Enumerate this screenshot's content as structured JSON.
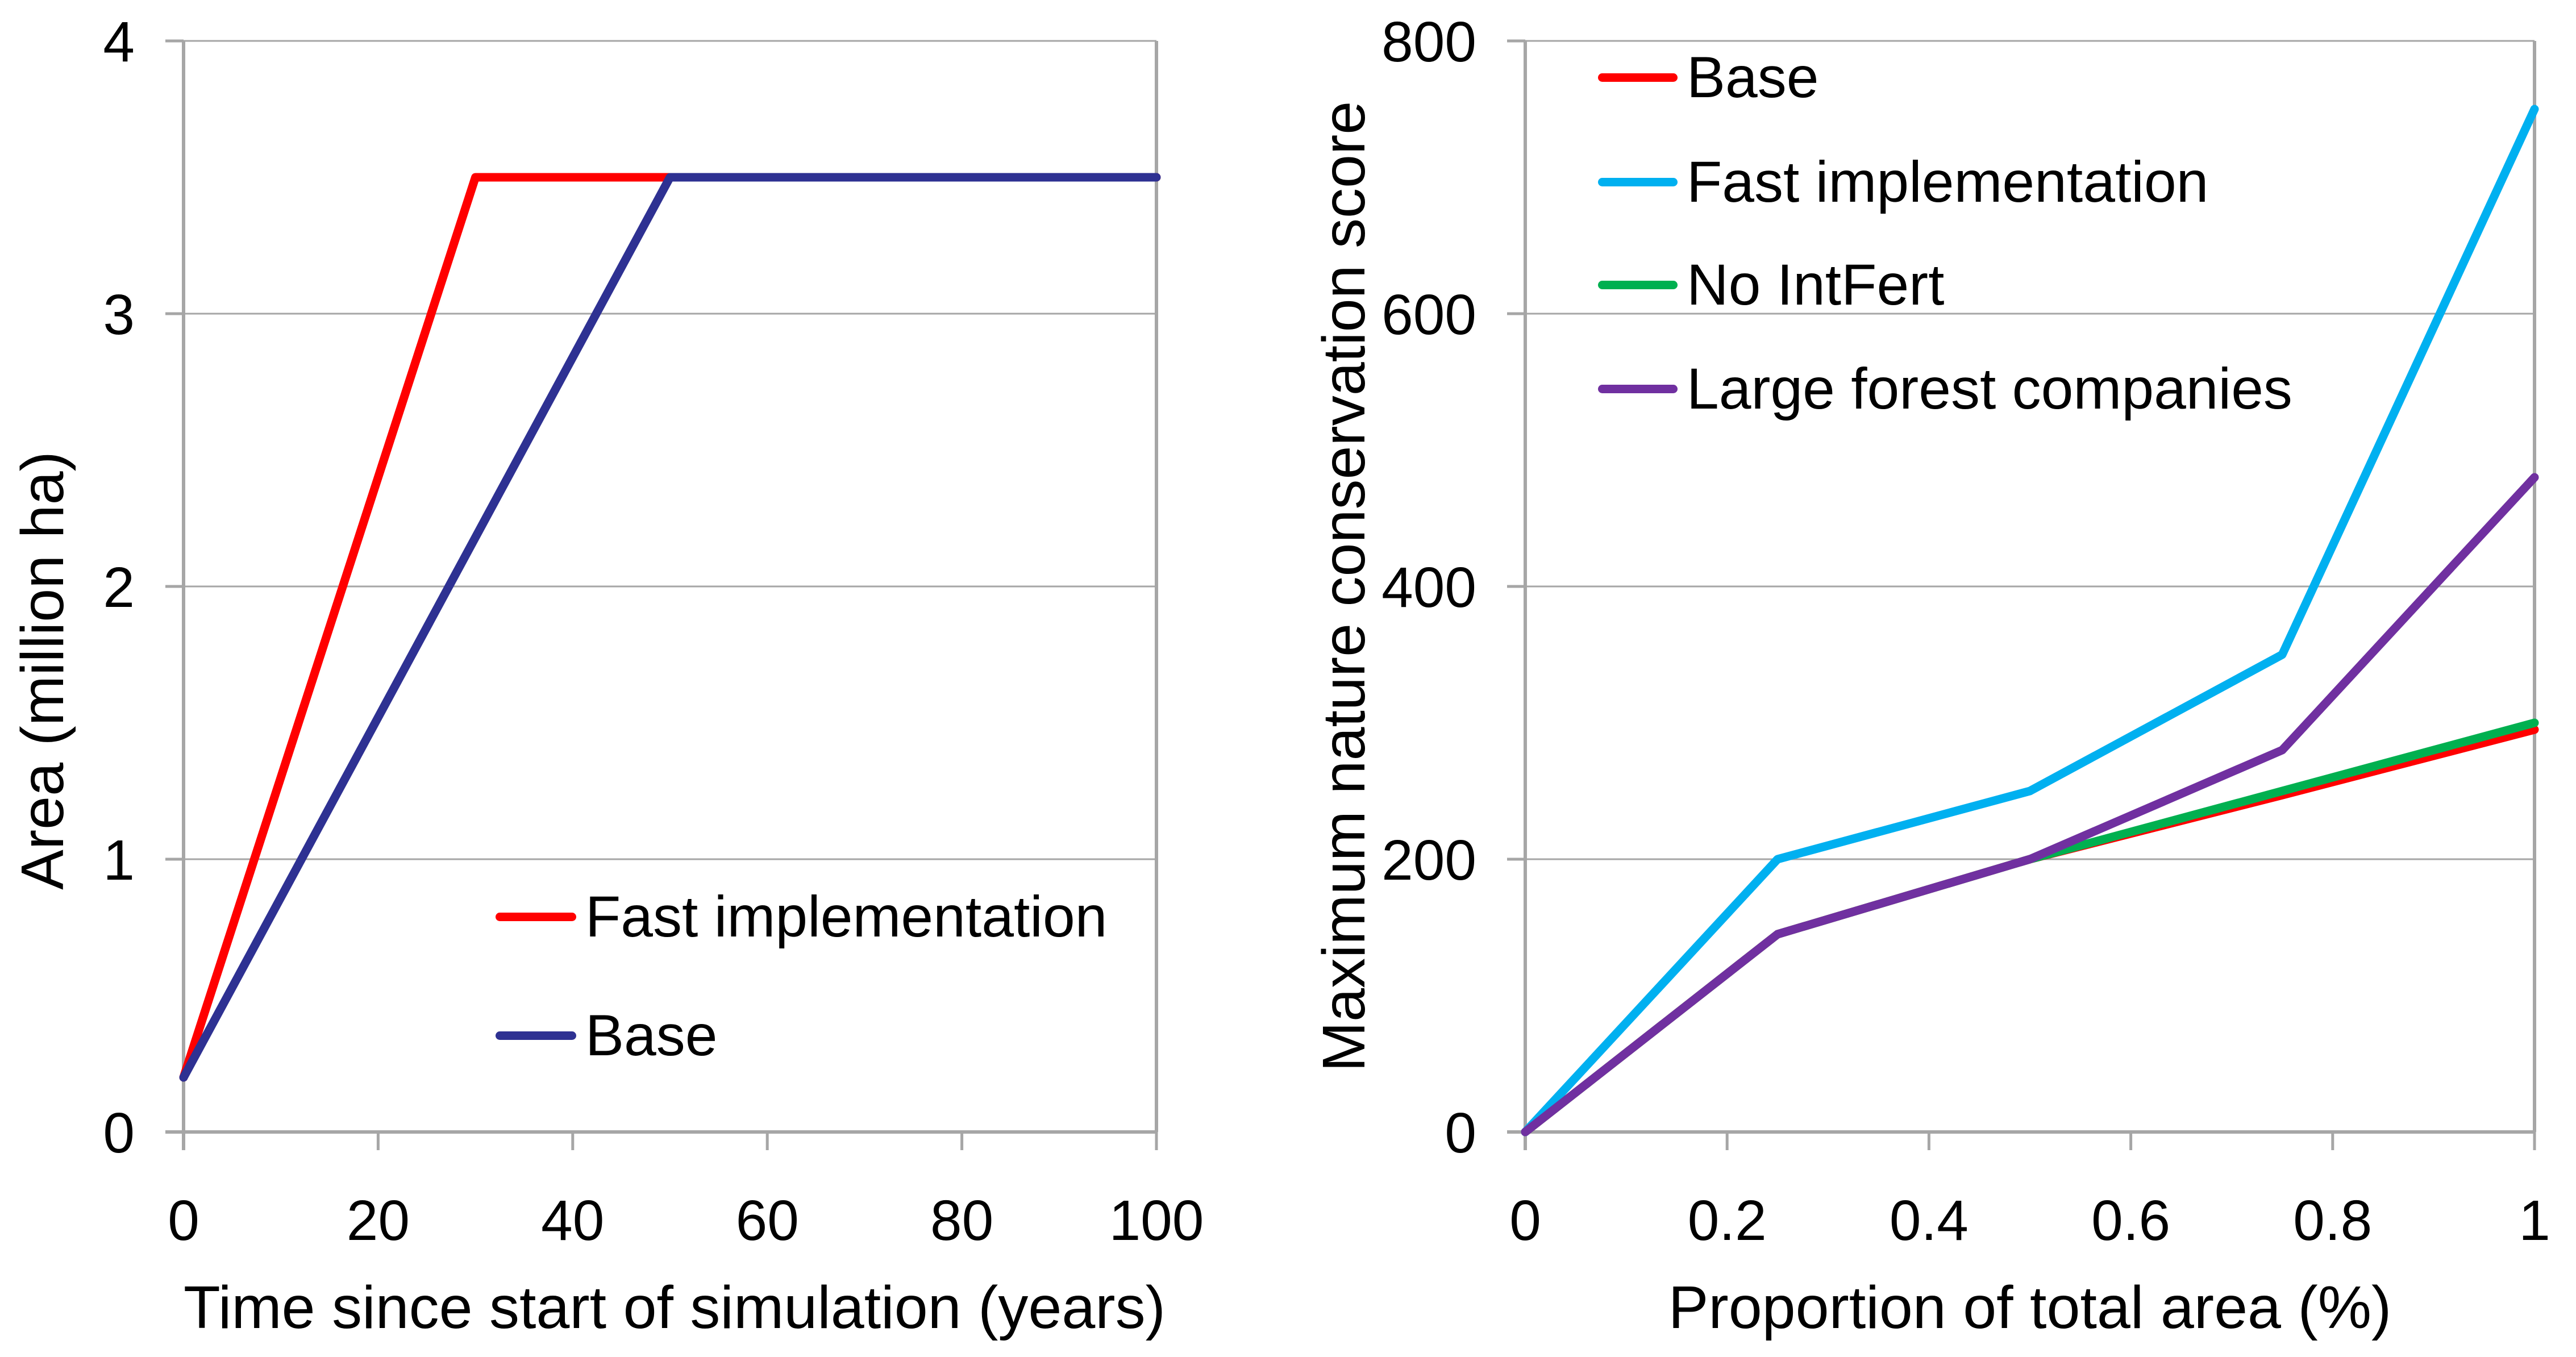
{
  "colors": {
    "background": "#FFFFFF",
    "axis": "#A6A6A6",
    "grid": "#A6A6A6",
    "text": "#000000"
  },
  "chart_data": [
    {
      "type": "line",
      "title": "",
      "xlabel": "Time since start of simulation (years)",
      "ylabel": "Area (million ha)",
      "xlim": [
        0,
        100
      ],
      "ylim": [
        0,
        4
      ],
      "xticks": [
        0,
        20,
        40,
        60,
        80,
        100
      ],
      "xtick_labels": [
        "0",
        "20",
        "40",
        "60",
        "80",
        "100"
      ],
      "yticks": [
        0,
        1,
        2,
        3,
        4
      ],
      "ytick_labels": [
        "0",
        "1",
        "2",
        "3",
        "4"
      ],
      "grid": "horizontal gridlines at each y tick, plot area border on top and right",
      "legend_position": "inside plot, lower middle",
      "series": [
        {
          "name": "Fast implementation",
          "color": "#FF0000",
          "x": [
            0,
            30,
            100
          ],
          "y": [
            0.2,
            3.5,
            3.5
          ]
        },
        {
          "name": "Base",
          "color": "#2E3192",
          "x": [
            0,
            50,
            100
          ],
          "y": [
            0.2,
            3.5,
            3.5
          ]
        }
      ]
    },
    {
      "type": "line",
      "title": "",
      "xlabel": "Proportion of total area (%)",
      "ylabel": "Maximum nature conservation score",
      "xlim": [
        0,
        1
      ],
      "ylim": [
        0,
        800
      ],
      "xticks": [
        0,
        0.2,
        0.4,
        0.6,
        0.8,
        1
      ],
      "xtick_labels": [
        "0",
        "0.2",
        "0.4",
        "0.6",
        "0.8",
        "1"
      ],
      "yticks": [
        0,
        200,
        400,
        600,
        800
      ],
      "ytick_labels": [
        "0",
        "200",
        "400",
        "600",
        "800"
      ],
      "grid": "horizontal gridlines at each y tick, plot area border on top and right",
      "legend_position": "inside plot, upper left",
      "series": [
        {
          "name": "Base",
          "color": "#FF0000",
          "x": [
            0,
            0.25,
            0.5,
            0.75,
            1
          ],
          "y": [
            0,
            145,
            200,
            247,
            295
          ]
        },
        {
          "name": "Fast implementation",
          "color": "#00B0F0",
          "x": [
            0,
            0.25,
            0.5,
            0.75,
            1
          ],
          "y": [
            0,
            200,
            250,
            350,
            750
          ]
        },
        {
          "name": "No IntFert",
          "color": "#00B050",
          "x": [
            0,
            0.25,
            0.5,
            0.75,
            1
          ],
          "y": [
            0,
            145,
            200,
            250,
            300
          ]
        },
        {
          "name": "Large forest companies",
          "color": "#7030A0",
          "x": [
            0,
            0.25,
            0.5,
            0.75,
            1
          ],
          "y": [
            0,
            145,
            200,
            280,
            480
          ]
        }
      ]
    }
  ]
}
